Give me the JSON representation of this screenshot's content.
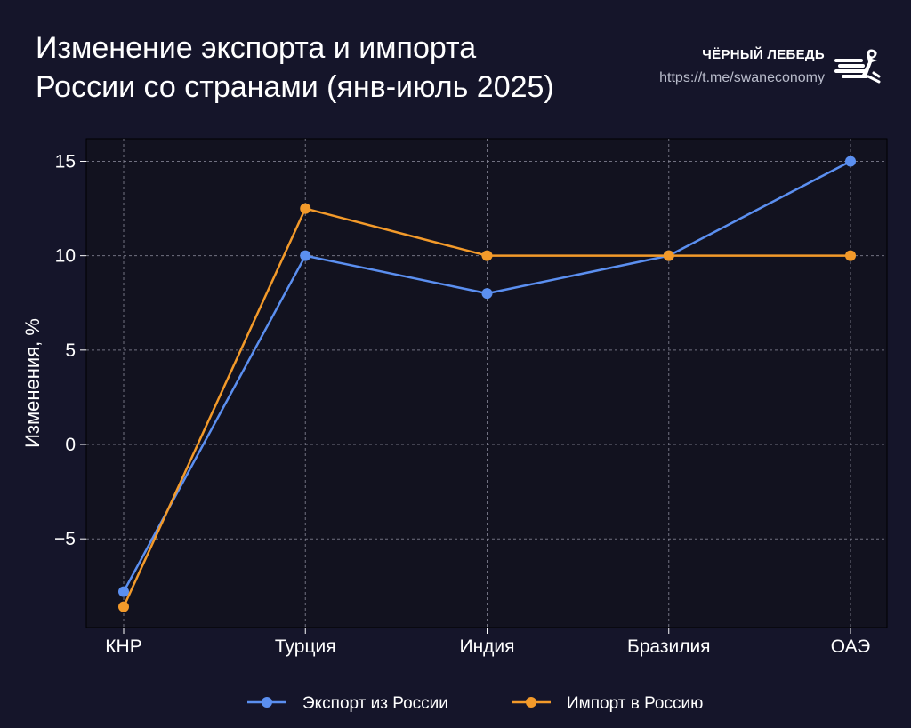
{
  "header": {
    "title_line1": "Изменение экспорта и импорта",
    "title_line2": "России со странами (янв-июль 2025)"
  },
  "brand": {
    "name": "ЧЁРНЫЙ ЛЕБЕДЬ",
    "url": "https://t.me/swaneconomy",
    "logo_icon": "swan-logo-icon"
  },
  "colors": {
    "background": "#15152a",
    "plot_background": "#12121f",
    "grid": "#8a8a9a",
    "export": "#5b8ff0",
    "import": "#f39a2a"
  },
  "chart_data": {
    "type": "line",
    "title": "Изменение экспорта и импорта России со странами (янв-июль 2025)",
    "xlabel": "",
    "ylabel": "Изменения, %",
    "categories": [
      "КНР",
      "Турция",
      "Индия",
      "Бразилия",
      "ОАЭ"
    ],
    "series": [
      {
        "name": "Экспорт из России",
        "color": "#5b8ff0",
        "values": [
          -7.8,
          10,
          8,
          10,
          15
        ]
      },
      {
        "name": "Импорт в Россию",
        "color": "#f39a2a",
        "values": [
          -8.6,
          12.5,
          10,
          10,
          10
        ]
      }
    ],
    "yticks": [
      -5,
      0,
      5,
      10,
      15
    ],
    "ytick_labels": [
      "−5",
      "0",
      "5",
      "10",
      "15"
    ],
    "ylim": [
      -9.7,
      16.2
    ],
    "grid": true,
    "legend_position": "bottom-center"
  }
}
